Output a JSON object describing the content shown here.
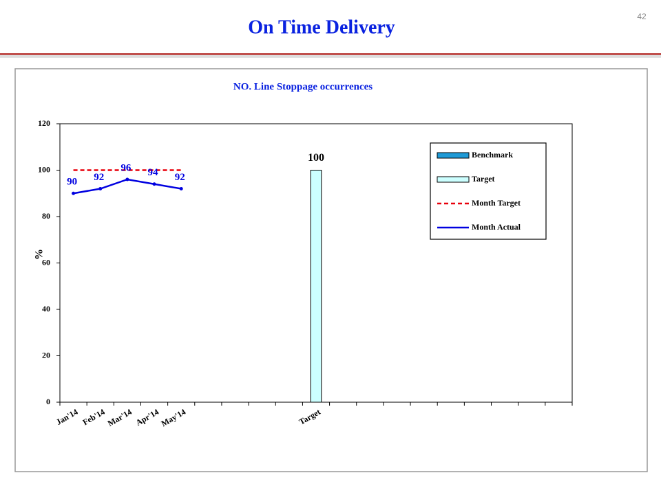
{
  "slide": {
    "title": "On Time Delivery",
    "page_number": "42"
  },
  "chart_data": {
    "type": "bar",
    "title": "NO. Line Stoppage occurrences",
    "y_label": "%",
    "categories": [
      "Jan'14",
      "Feb'14",
      "Mar'14",
      "Apr'14",
      "May'14",
      null,
      null,
      null,
      null,
      "Target",
      null,
      null,
      null,
      null,
      null,
      null,
      null,
      null,
      null
    ],
    "series": [
      {
        "name": "Benchmark",
        "type": "bar",
        "color": "#1f9ad6",
        "values": [
          null,
          null,
          null,
          null,
          null,
          null,
          null,
          null,
          null,
          null,
          null,
          null,
          null,
          null,
          null,
          null,
          null,
          null,
          null
        ]
      },
      {
        "name": "Target",
        "type": "bar",
        "color": "#ccffff",
        "data_labels": true,
        "values": [
          null,
          null,
          null,
          null,
          null,
          null,
          null,
          null,
          null,
          100,
          null,
          null,
          null,
          null,
          null,
          null,
          null,
          null,
          null
        ]
      },
      {
        "name": "Month Target",
        "type": "line",
        "color": "#e8000b",
        "dashed": true,
        "values": [
          100,
          100,
          100,
          100,
          100,
          null,
          null,
          null,
          null,
          null,
          null,
          null,
          null,
          null,
          null,
          null,
          null,
          null,
          null
        ]
      },
      {
        "name": "Month Actual",
        "type": "line",
        "color": "#0000e0",
        "markers": true,
        "data_labels": true,
        "values": [
          90,
          92,
          96,
          94,
          92,
          null,
          null,
          null,
          null,
          null,
          null,
          null,
          null,
          null,
          null,
          null,
          null,
          null,
          null
        ]
      }
    ],
    "ylim": [
      0,
      120
    ],
    "yticks": [
      0,
      20,
      40,
      60,
      80,
      100,
      120
    ],
    "grid": false,
    "legend": "upper right"
  }
}
